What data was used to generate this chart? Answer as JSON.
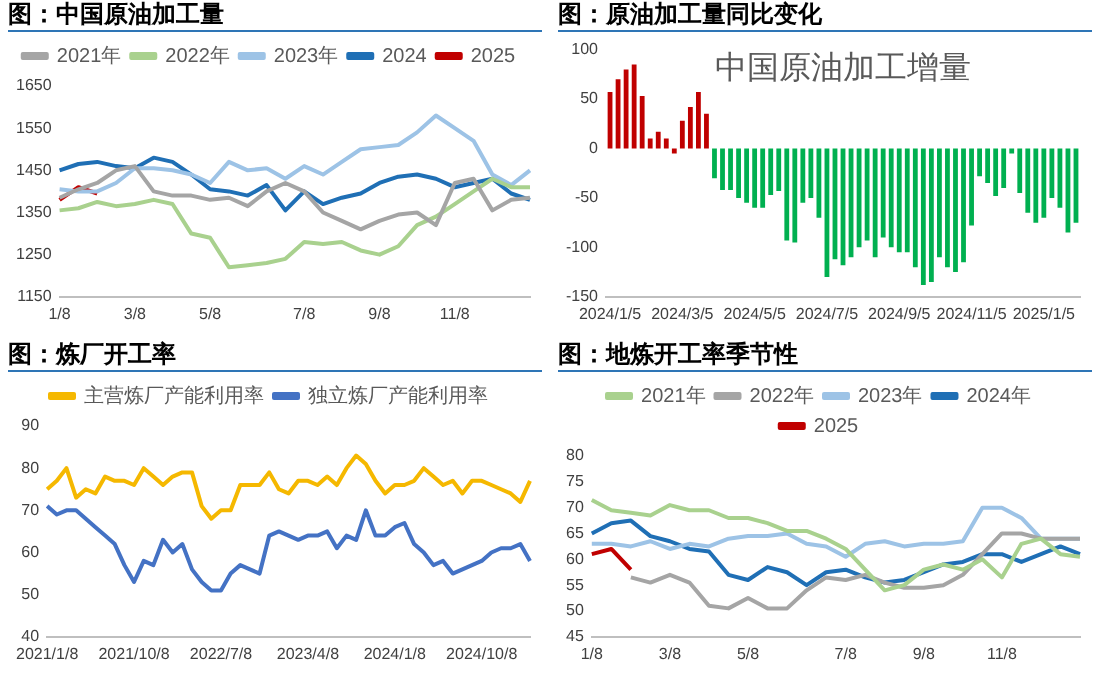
{
  "chart_data": [
    {
      "type": "line",
      "title": "图：中国原油加工量",
      "legend": "top",
      "marker": "none",
      "line_style": "solid",
      "grid": false,
      "categories": [
        "1/8",
        null,
        null,
        null,
        "3/8",
        null,
        null,
        null,
        "5/8",
        null,
        null,
        null,
        null,
        "7/8",
        null,
        null,
        null,
        "9/8",
        null,
        null,
        null,
        "11/8",
        null,
        null,
        null,
        null
      ],
      "ylim": [
        1150,
        1650
      ],
      "yticks": [
        1150,
        1250,
        1350,
        1450,
        1550,
        1650
      ],
      "series": [
        {
          "name": "2021年",
          "color": "#a5a5a5",
          "values": [
            1385,
            1405,
            1420,
            1450,
            1460,
            1400,
            1390,
            1390,
            1380,
            1385,
            1365,
            1400,
            1420,
            1400,
            1350,
            1330,
            1310,
            1330,
            1345,
            1350,
            1320,
            1420,
            1430,
            1355,
            1380,
            1385
          ]
        },
        {
          "name": "2022年",
          "color": "#a9d18e",
          "values": [
            1355,
            1360,
            1375,
            1365,
            1370,
            1380,
            1370,
            1300,
            1290,
            1220,
            1225,
            1230,
            1240,
            1280,
            1275,
            1280,
            1260,
            1250,
            1270,
            1320,
            1340,
            1370,
            1400,
            1430,
            1410,
            1410
          ]
        },
        {
          "name": "2023年",
          "color": "#9dc3e6",
          "values": [
            1405,
            1400,
            1400,
            1420,
            1455,
            1455,
            1450,
            1440,
            1420,
            1470,
            1450,
            1455,
            1430,
            1460,
            1440,
            1470,
            1500,
            1505,
            1510,
            1540,
            1580,
            1550,
            1520,
            1440,
            1415,
            1450
          ]
        },
        {
          "name": "2024",
          "color": "#1f6fb5",
          "values": [
            1450,
            1465,
            1470,
            1460,
            1455,
            1480,
            1470,
            1440,
            1405,
            1400,
            1390,
            1415,
            1355,
            1400,
            1370,
            1385,
            1395,
            1420,
            1435,
            1440,
            1430,
            1410,
            1420,
            1430,
            1395,
            1380
          ]
        },
        {
          "name": "2025",
          "color": "#c00000",
          "values": [
            1380,
            1410,
            1395,
            null,
            null,
            null,
            null,
            null,
            null,
            null,
            null,
            null,
            null,
            null,
            null,
            null,
            null,
            null,
            null,
            null,
            null,
            null,
            null,
            null,
            null,
            null
          ]
        }
      ]
    },
    {
      "type": "bar",
      "title": "图：原油加工量同比变化",
      "annotations": [
        "中国原油加工增量"
      ],
      "categories": [
        "2024/1/5",
        null,
        null,
        null,
        null,
        null,
        null,
        null,
        null,
        "2024/3/5",
        null,
        null,
        null,
        null,
        null,
        null,
        null,
        null,
        "2024/5/5",
        null,
        null,
        null,
        null,
        null,
        null,
        null,
        null,
        "2024/7/5",
        null,
        null,
        null,
        null,
        null,
        null,
        null,
        null,
        "2024/9/5",
        null,
        null,
        null,
        null,
        null,
        null,
        null,
        null,
        "2024/11/5",
        null,
        null,
        null,
        null,
        null,
        null,
        null,
        null,
        "2025/1/5",
        null,
        null,
        null,
        null
      ],
      "values": [
        57,
        70,
        80,
        85,
        53,
        10,
        17,
        10,
        -5,
        28,
        42,
        57,
        35,
        -30,
        -42,
        -42,
        -50,
        -55,
        -60,
        -60,
        -47,
        -43,
        -93,
        -95,
        -55,
        -50,
        -70,
        -130,
        -112,
        -118,
        -110,
        -100,
        -93,
        -110,
        -90,
        -100,
        -105,
        -105,
        -120,
        -138,
        -135,
        -110,
        -120,
        -125,
        -115,
        -78,
        -28,
        -35,
        -48,
        -40,
        -5,
        -45,
        -65,
        -75,
        -70,
        -50,
        -60,
        -85,
        -75
      ],
      "colors": [
        "#c00000",
        "#c00000",
        "#c00000",
        "#c00000",
        "#c00000",
        "#c00000",
        "#c00000",
        "#c00000",
        "#c00000",
        "#c00000",
        "#c00000",
        "#c00000",
        "#c00000",
        "#00b050",
        "#00b050",
        "#00b050",
        "#00b050",
        "#00b050",
        "#00b050",
        "#00b050",
        "#00b050",
        "#00b050",
        "#00b050",
        "#00b050",
        "#00b050",
        "#00b050",
        "#00b050",
        "#00b050",
        "#00b050",
        "#00b050",
        "#00b050",
        "#00b050",
        "#00b050",
        "#00b050",
        "#00b050",
        "#00b050",
        "#00b050",
        "#00b050",
        "#00b050",
        "#00b050",
        "#00b050",
        "#00b050",
        "#00b050",
        "#00b050",
        "#00b050",
        "#00b050",
        "#00b050",
        "#00b050",
        "#00b050",
        "#00b050",
        "#00b050",
        "#00b050",
        "#00b050",
        "#00b050",
        "#00b050",
        "#00b050",
        "#00b050",
        "#00b050",
        "#00b050"
      ],
      "ylim": [
        -150,
        100
      ],
      "yticks": [
        -150,
        -100,
        -50,
        0,
        50,
        100
      ],
      "grid": false
    },
    {
      "type": "line",
      "title": "图：炼厂开工率",
      "legend": "top",
      "marker": "none",
      "line_style": "solid",
      "grid": false,
      "categories": [
        "2021/1/8",
        null,
        null,
        null,
        null,
        null,
        null,
        null,
        null,
        "2021/10/8",
        null,
        null,
        null,
        null,
        null,
        null,
        null,
        null,
        "2022/7/8",
        null,
        null,
        null,
        null,
        null,
        null,
        null,
        null,
        "2023/4/8",
        null,
        null,
        null,
        null,
        null,
        null,
        null,
        null,
        "2024/1/8",
        null,
        null,
        null,
        null,
        null,
        null,
        null,
        null,
        "2024/10/8",
        null,
        null,
        null,
        null,
        null
      ],
      "ylim": [
        40,
        90
      ],
      "yticks": [
        40,
        50,
        60,
        70,
        80,
        90
      ],
      "series": [
        {
          "name": "主营炼厂产能利用率",
          "color": "#f5b800",
          "values": [
            75,
            77,
            80,
            73,
            75,
            74,
            78,
            77,
            77,
            76,
            80,
            78,
            76,
            78,
            79,
            79,
            71,
            68,
            70,
            70,
            76,
            76,
            76,
            79,
            75,
            74,
            77,
            77,
            76,
            78,
            76,
            80,
            83,
            81,
            77,
            74,
            76,
            76,
            77,
            80,
            78,
            76,
            77,
            74,
            77,
            77,
            76,
            75,
            74,
            72,
            77
          ]
        },
        {
          "name": "独立炼厂产能利用率",
          "color": "#4472c4",
          "values": [
            71,
            69,
            70,
            70,
            68,
            66,
            64,
            62,
            57,
            53,
            58,
            57,
            63,
            60,
            62,
            56,
            53,
            51,
            51,
            55,
            57,
            56,
            55,
            64,
            65,
            64,
            63,
            64,
            64,
            65,
            61,
            64,
            63,
            70,
            64,
            64,
            66,
            67,
            62,
            60,
            57,
            58,
            55,
            56,
            57,
            58,
            60,
            61,
            61,
            62,
            58
          ]
        }
      ]
    },
    {
      "type": "line",
      "title": "图：地炼开工率季节性",
      "legend": "top",
      "marker": "none",
      "line_style": "solid",
      "grid": false,
      "categories": [
        "1/8",
        null,
        null,
        null,
        "3/8",
        null,
        null,
        null,
        "5/8",
        null,
        null,
        null,
        null,
        "7/8",
        null,
        null,
        null,
        "9/8",
        null,
        null,
        null,
        "11/8",
        null,
        null,
        null,
        null
      ],
      "ylim": [
        45,
        80
      ],
      "yticks": [
        45,
        50,
        55,
        60,
        65,
        70,
        75,
        80
      ],
      "series": [
        {
          "name": "2021年",
          "color": "#a9d18e",
          "values": [
            71.5,
            69.5,
            69,
            68.5,
            70.5,
            69.5,
            69.5,
            68,
            68,
            67,
            65.5,
            65.5,
            64,
            62,
            58,
            54,
            55,
            58,
            59,
            58,
            60,
            56.5,
            63,
            64,
            61,
            60.5
          ]
        },
        {
          "name": "2022年",
          "color": "#a5a5a5",
          "values": [
            null,
            null,
            56.5,
            55.5,
            57,
            55.5,
            51,
            50.5,
            52.5,
            50.5,
            50.5,
            54,
            56.5,
            56,
            57,
            55.5,
            54.5,
            54.5,
            55,
            57,
            61,
            65,
            65,
            64,
            64,
            64
          ]
        },
        {
          "name": "2023年",
          "color": "#9dc3e6",
          "values": [
            63,
            63,
            62.5,
            63.5,
            62,
            63,
            62.5,
            64,
            64.5,
            64.5,
            65,
            63,
            62.5,
            60.5,
            63,
            63.5,
            62.5,
            63,
            63,
            63.5,
            70,
            70,
            68,
            64,
            64,
            64
          ]
        },
        {
          "name": "2024年",
          "color": "#1f6fb5",
          "values": [
            65,
            67,
            67.5,
            64.5,
            63.5,
            62,
            61.5,
            57,
            56,
            58.5,
            57.5,
            55,
            57.5,
            58,
            56.5,
            55.5,
            56,
            57.5,
            59,
            59.5,
            61,
            61,
            59.5,
            61,
            62.5,
            61
          ]
        },
        {
          "name": "2025",
          "color": "#c00000",
          "values": [
            61,
            62,
            58,
            null,
            null,
            null,
            null,
            null,
            null,
            null,
            null,
            null,
            null,
            null,
            null,
            null,
            null,
            null,
            null,
            null,
            null,
            null,
            null,
            null,
            null,
            null
          ]
        }
      ]
    }
  ]
}
